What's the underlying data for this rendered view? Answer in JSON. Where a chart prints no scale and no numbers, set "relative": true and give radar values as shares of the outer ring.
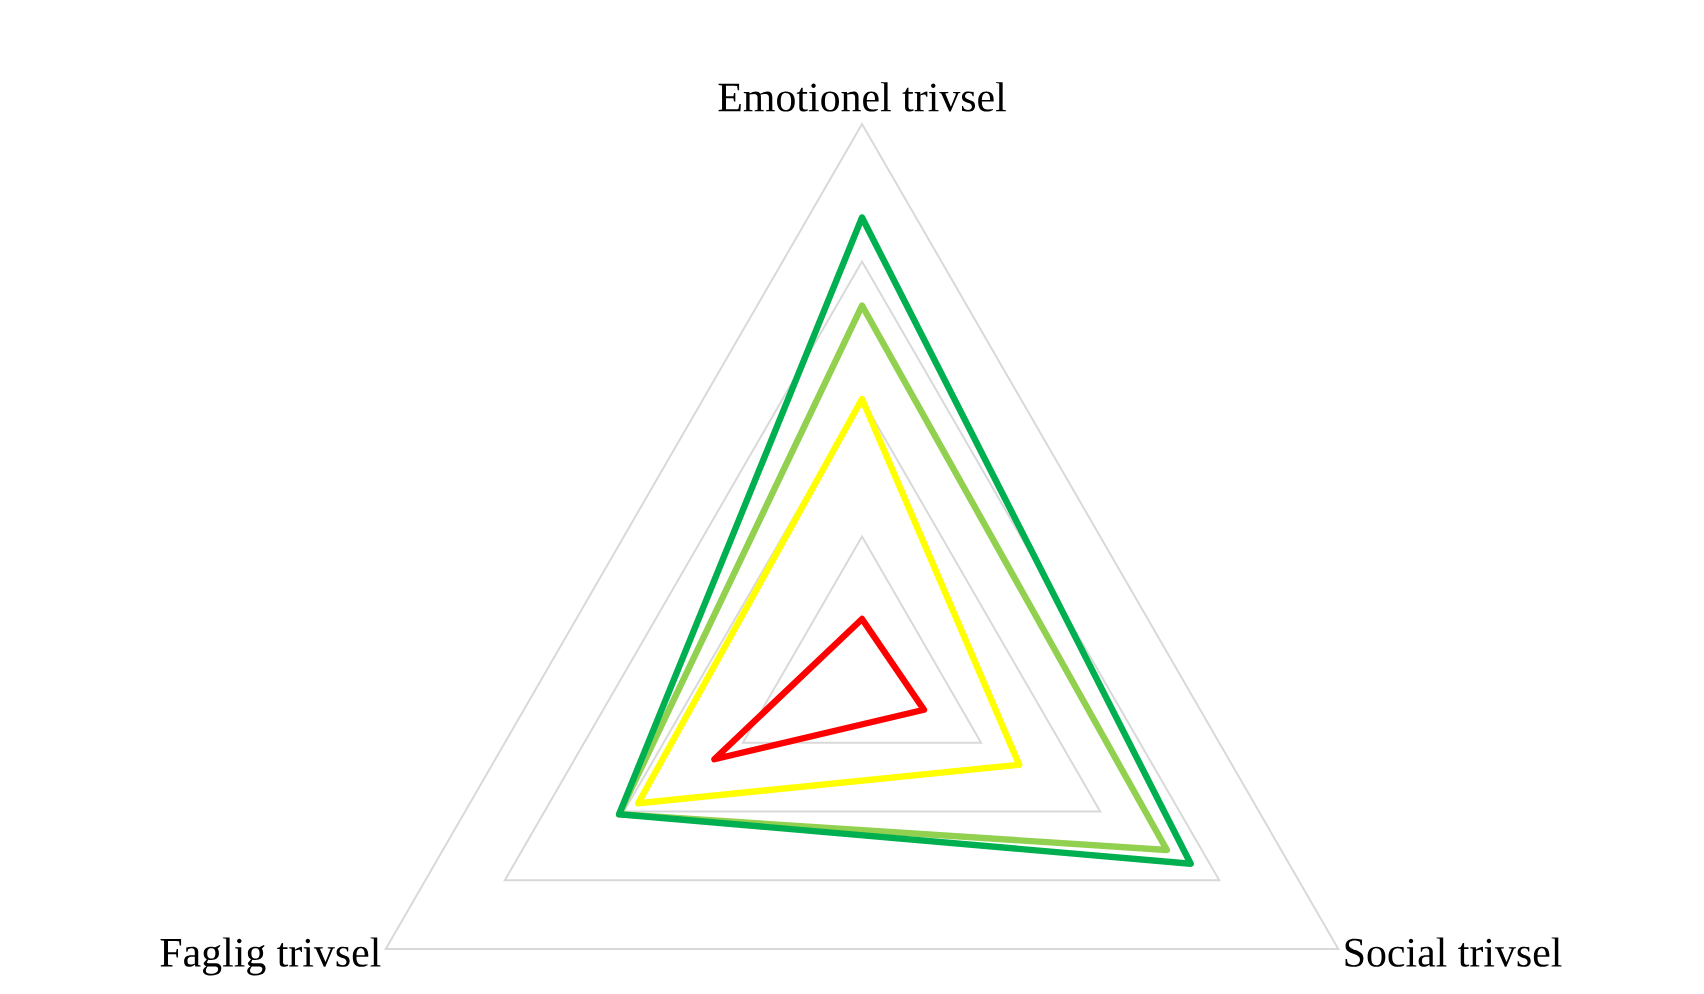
{
  "chart_data": {
    "type": "radar",
    "categories": [
      "Emotionel trivsel",
      "Social trivsel",
      "Faglig trivsel"
    ],
    "relative": true,
    "grid": true,
    "series": [
      {
        "color": "#ff0000",
        "values": [
          0.1,
          0.13,
          0.31
        ]
      },
      {
        "color": "#ffff00",
        "values": [
          0.5,
          0.33,
          0.47
        ]
      },
      {
        "color": "#92d050",
        "values": [
          0.67,
          0.64,
          0.51
        ]
      },
      {
        "color": "#00b050",
        "values": [
          0.83,
          0.69,
          0.51
        ]
      }
    ]
  }
}
